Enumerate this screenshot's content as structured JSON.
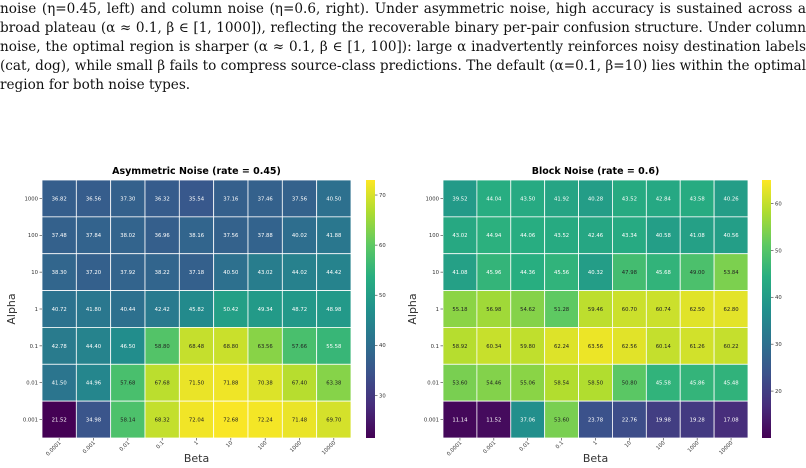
{
  "caption": {
    "text": "noise (η=0.45, left) and column noise (η=0.6, right). Under asymmetric noise, high accuracy is sustained across a broad plateau (α ≈ 0.1, β ∈ [1, 1000]), reflecting the recoverable binary per-pair confusion structure. Under column noise, the optimal region is sharper (α ≈ 0.1, β ∈ [1, 100]): large α inadvertently reinforces noisy destination labels (cat, dog), while small β fails to compress source-class predictions. The default (α=0.1, β=10) lies within the optimal region for both noise types."
  },
  "chart_data": [
    {
      "type": "heatmap",
      "title": "Asymmetric Noise (rate = 0.45)",
      "xlabel": "Beta",
      "ylabel": "Alpha",
      "x": [
        "0.0001",
        "0.001",
        "0.01",
        "0.1",
        "1",
        "10",
        "100",
        "1000",
        "10000"
      ],
      "y": [
        "1000",
        "100",
        "10",
        "1",
        "0.1",
        "0.01",
        "0.001"
      ],
      "values": [
        [
          36.82,
          36.56,
          37.3,
          36.32,
          35.54,
          37.16,
          37.46,
          37.56,
          40.5
        ],
        [
          37.48,
          37.84,
          38.02,
          36.96,
          38.16,
          37.56,
          37.88,
          40.02,
          41.88
        ],
        [
          38.3,
          37.2,
          37.92,
          38.22,
          37.18,
          40.5,
          43.02,
          44.02,
          44.42
        ],
        [
          40.72,
          41.8,
          40.44,
          42.42,
          45.82,
          50.42,
          49.34,
          48.72,
          48.98
        ],
        [
          42.78,
          44.4,
          46.5,
          58.8,
          68.48,
          68.8,
          63.56,
          57.66,
          55.58
        ],
        [
          41.5,
          44.96,
          57.68,
          67.68,
          71.5,
          71.88,
          70.38,
          67.4,
          63.38
        ],
        [
          21.52,
          34.98,
          58.14,
          68.32,
          72.04,
          72.68,
          72.24,
          71.48,
          69.7
        ]
      ],
      "vmin": 21.5,
      "vmax": 73,
      "colorbar_ticks": [
        30,
        40,
        50,
        60,
        70
      ]
    },
    {
      "type": "heatmap",
      "title": "Block Noise (rate = 0.6)",
      "xlabel": "Beta",
      "ylabel": "Alpha",
      "x": [
        "0.0001",
        "0.001",
        "0.01",
        "0.1",
        "1",
        "10",
        "100",
        "1000",
        "10000"
      ],
      "y": [
        "1000",
        "100",
        "10",
        "1",
        "0.1",
        "0.01",
        "0.001"
      ],
      "values": [
        [
          39.52,
          44.04,
          43.5,
          41.92,
          40.28,
          43.52,
          42.84,
          43.58,
          40.26
        ],
        [
          43.02,
          44.94,
          44.06,
          43.52,
          42.46,
          43.34,
          40.58,
          41.08,
          40.56
        ],
        [
          41.08,
          45.96,
          44.36,
          45.56,
          40.32,
          47.98,
          45.68,
          49.0,
          53.84
        ],
        [
          55.18,
          56.98,
          54.62,
          51.28,
          59.46,
          60.7,
          60.74,
          62.5,
          62.8
        ],
        [
          58.92,
          60.34,
          59.8,
          62.24,
          63.56,
          62.56,
          60.14,
          61.26,
          60.22
        ],
        [
          53.6,
          54.46,
          55.06,
          58.54,
          58.5,
          50.8,
          45.58,
          45.86,
          45.48
        ],
        [
          11.14,
          11.52,
          37.06,
          53.6,
          23.78,
          22.76,
          19.98,
          19.28,
          17.08
        ]
      ],
      "vmin": 10,
      "vmax": 65,
      "colorbar_ticks": [
        20,
        30,
        40,
        50,
        60
      ]
    }
  ]
}
